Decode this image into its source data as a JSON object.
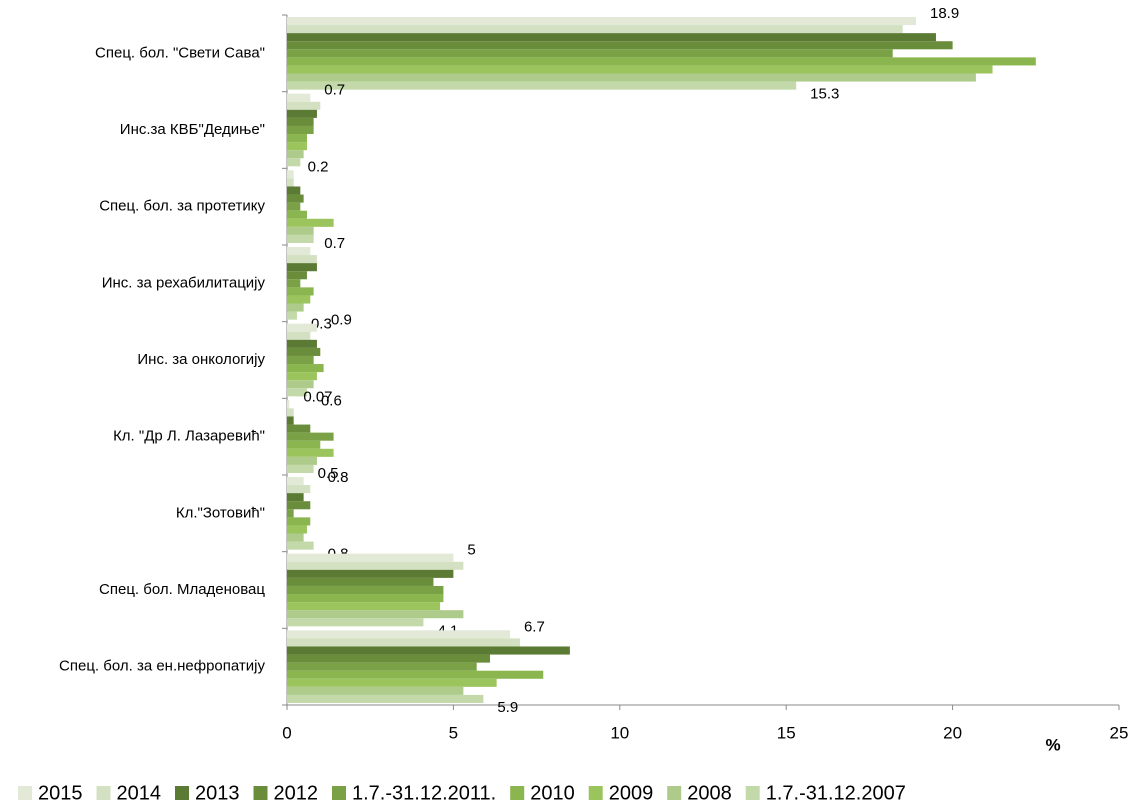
{
  "chart_data": {
    "type": "hbar",
    "x_label": "%",
    "categories": [
      "Спец. бол. \"Свети Сава\"",
      "Инс.за КВБ\"Дедиње\"",
      "Спец. бол. за протетику",
      "Инс. за рехабилитацију ",
      "Инс. за онкологију",
      "Кл. \"Др Л. Лазаревић\"",
      "Кл.\"Зотовић\"",
      "Спец. бол. Младеновац",
      "Спец. бол. за ен.нефропатију"
    ],
    "series": [
      {
        "name": "2015",
        "color": "#e2e9d6",
        "values": [
          18.9,
          0.7,
          0.2,
          0.7,
          0.9,
          0.07,
          0.5,
          5,
          6.7
        ],
        "show_labels": [
          true,
          true,
          true,
          true,
          true,
          true,
          true,
          true,
          true
        ]
      },
      {
        "name": "2014",
        "color": "#d3e0c1",
        "values": [
          18.5,
          1.0,
          0.2,
          0.9,
          0.7,
          0.2,
          0.7,
          5.3,
          7.0
        ]
      },
      {
        "name": "2013",
        "color": "#5b7a34",
        "values": [
          19.5,
          0.9,
          0.4,
          0.9,
          0.9,
          0.2,
          0.5,
          5.0,
          8.5
        ]
      },
      {
        "name": "2012",
        "color": "#6a8d3c",
        "values": [
          20.0,
          0.8,
          0.5,
          0.6,
          1.0,
          0.7,
          0.7,
          4.4,
          6.1
        ]
      },
      {
        "name": "1.7.-31.12.2011.",
        "color": "#7aa146",
        "values": [
          18.2,
          0.8,
          0.4,
          0.4,
          0.8,
          1.4,
          0.2,
          4.7,
          5.7
        ]
      },
      {
        "name": "2010",
        "color": "#8ab54f",
        "values": [
          22.5,
          0.6,
          0.6,
          0.8,
          1.1,
          1.0,
          0.7,
          4.7,
          7.7
        ]
      },
      {
        "name": "2009",
        "color": "#9cc45d",
        "values": [
          21.2,
          0.6,
          1.4,
          0.7,
          0.9,
          1.4,
          0.6,
          4.6,
          6.3
        ]
      },
      {
        "name": "2008",
        "color": "#aecb8b",
        "values": [
          20.7,
          0.5,
          0.8,
          0.5,
          0.8,
          0.9,
          0.5,
          5.3,
          5.3
        ]
      },
      {
        "name": "1.7.-31.12.2007",
        "color": "#c3d9a9",
        "values": [
          15.3,
          0.4,
          0.8,
          0.3,
          0.6,
          0.8,
          0.8,
          4.1,
          5.9
        ],
        "show_labels": [
          true,
          false,
          false,
          true,
          true,
          true,
          true,
          true,
          true
        ]
      }
    ],
    "xlim": [
      0,
      25
    ],
    "xticks": [
      0,
      5,
      10,
      15,
      20,
      25
    ]
  }
}
